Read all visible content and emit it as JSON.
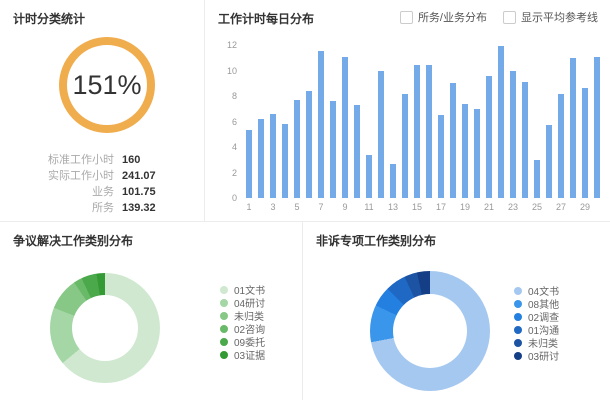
{
  "panels": {
    "timing_summary": {
      "title": "计时分类统计",
      "gauge": {
        "value_label": "151%",
        "ring_color": "#f0ad4e"
      },
      "stats": [
        {
          "label": "标准工作小时",
          "value": "160"
        },
        {
          "label": "实际工作小时",
          "value": "241.07"
        },
        {
          "label": "业务",
          "value": "101.75"
        },
        {
          "label": "所务",
          "value": "139.32"
        }
      ]
    },
    "daily_hours": {
      "title": "工作计时每日分布",
      "checkboxes": [
        {
          "label": "所务/业务分布",
          "checked": false
        },
        {
          "label": "显示平均参考线",
          "checked": false
        }
      ]
    },
    "dispute_categories": {
      "title": "争议解决工作类别分布"
    },
    "nonlitigation_categories": {
      "title": "非诉专项工作类别分布"
    }
  },
  "chart_data": [
    {
      "id": "daily_hours_bar",
      "type": "bar",
      "title": "工作计时每日分布",
      "x": [
        1,
        2,
        3,
        4,
        5,
        6,
        7,
        8,
        9,
        10,
        11,
        12,
        13,
        14,
        15,
        16,
        17,
        18,
        19,
        20,
        21,
        22,
        23,
        24,
        25,
        26,
        27,
        28,
        29,
        30
      ],
      "values": [
        5.3,
        6.2,
        6.6,
        5.8,
        7.7,
        8.4,
        11.5,
        7.6,
        11.1,
        7.3,
        3.4,
        10.0,
        2.7,
        8.2,
        10.4,
        10.4,
        6.5,
        9.0,
        7.4,
        7.0,
        9.6,
        11.9,
        10.0,
        9.1,
        3.0,
        5.7,
        8.2,
        11.0,
        8.6,
        11.1
      ],
      "ylim": [
        0,
        12
      ],
      "yticks": [
        0,
        2,
        4,
        6,
        8,
        10,
        12
      ],
      "xtick_step_note": "only odd days labeled",
      "bar_color": "#74aae8",
      "grid": false
    },
    {
      "id": "dispute_donut",
      "type": "pie",
      "donut": true,
      "title": "争议解决工作类别分布",
      "labels": [
        "01文书",
        "04研讨",
        "未归类",
        "02咨询",
        "09委托",
        "03证据"
      ],
      "values_pct": [
        64,
        17,
        9.5,
        2.5,
        4.5,
        2.5
      ],
      "colors": [
        "#cfe8cf",
        "#a5d6a5",
        "#87c887",
        "#68b968",
        "#4ba84b",
        "#349a34"
      ],
      "legend_position": "right"
    },
    {
      "id": "nonlitigation_donut",
      "type": "pie",
      "donut": true,
      "title": "非诉专项工作类别分布",
      "labels": [
        "04文书",
        "08其他",
        "02调查",
        "01沟通",
        "未归类",
        "03研讨"
      ],
      "values_pct": [
        72,
        10,
        5.5,
        5.5,
        3.5,
        3.5
      ],
      "colors": [
        "#a5c8f0",
        "#3a96ea",
        "#2480e0",
        "#1f68c4",
        "#1c53a3",
        "#143e85"
      ],
      "legend_position": "right"
    }
  ]
}
